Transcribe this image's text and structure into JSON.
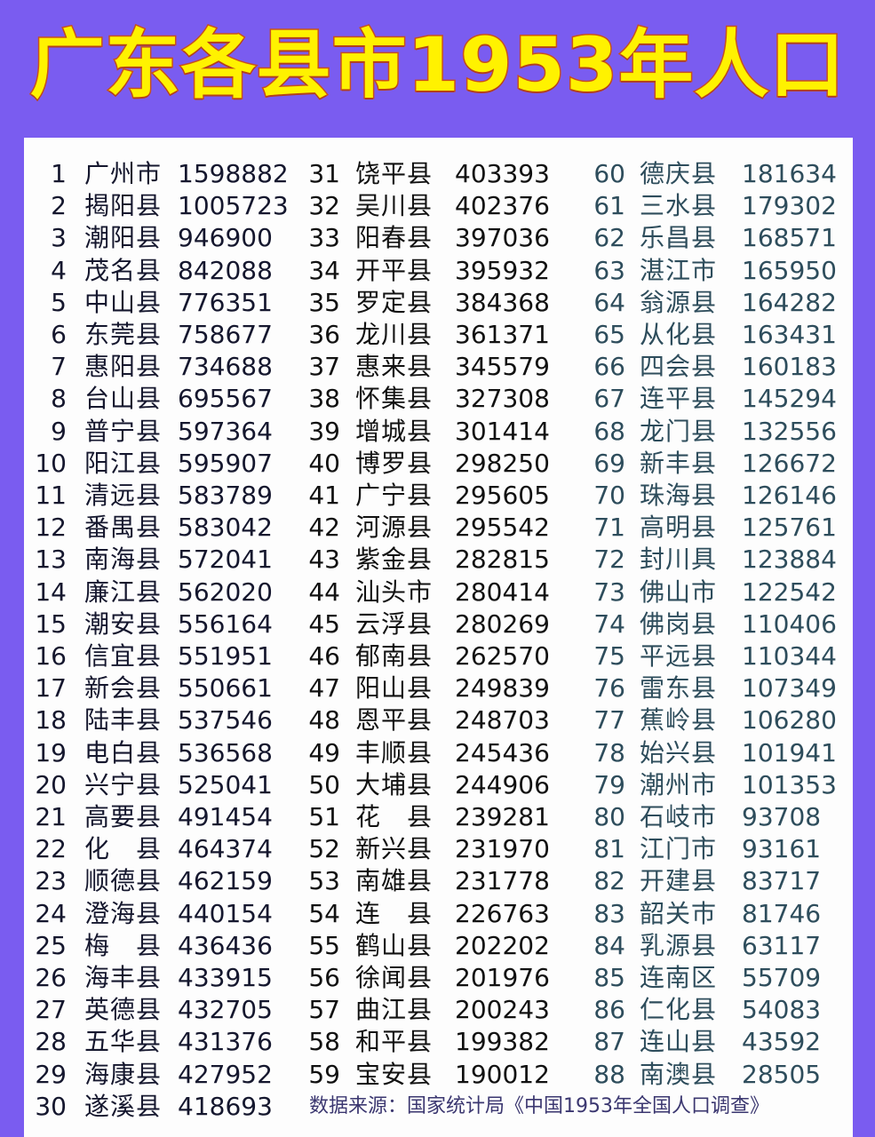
{
  "title": "广东各县市1953年人口",
  "source_note": "数据来源：国家统计局《中国1953年全国人口调查》",
  "colors": {
    "background": "#7a5cf0",
    "title_fill": "#fff200",
    "title_stroke": "#c8501e"
  },
  "columns": [
    {
      "rows": [
        {
          "rank": "1",
          "name": "广州市",
          "population": "1598882"
        },
        {
          "rank": "2",
          "name": "揭阳县",
          "population": "1005723"
        },
        {
          "rank": "3",
          "name": "潮阳县",
          "population": "946900"
        },
        {
          "rank": "4",
          "name": "茂名县",
          "population": "842088"
        },
        {
          "rank": "5",
          "name": "中山县",
          "population": "776351"
        },
        {
          "rank": "6",
          "name": "东莞县",
          "population": "758677"
        },
        {
          "rank": "7",
          "name": "惠阳县",
          "population": "734688"
        },
        {
          "rank": "8",
          "name": "台山县",
          "population": "695567"
        },
        {
          "rank": "9",
          "name": "普宁县",
          "population": "597364"
        },
        {
          "rank": "10",
          "name": "阳江县",
          "population": "595907"
        },
        {
          "rank": "11",
          "name": "清远县",
          "population": "583789"
        },
        {
          "rank": "12",
          "name": "番禺县",
          "population": "583042"
        },
        {
          "rank": "13",
          "name": "南海县",
          "population": "572041"
        },
        {
          "rank": "14",
          "name": "廉江县",
          "population": "562020"
        },
        {
          "rank": "15",
          "name": "潮安县",
          "population": "556164"
        },
        {
          "rank": "16",
          "name": "信宜县",
          "population": "551951"
        },
        {
          "rank": "17",
          "name": "新会县",
          "population": "550661"
        },
        {
          "rank": "18",
          "name": "陆丰县",
          "population": "537546"
        },
        {
          "rank": "19",
          "name": "电白县",
          "population": "536568"
        },
        {
          "rank": "20",
          "name": "兴宁县",
          "population": "525041"
        },
        {
          "rank": "21",
          "name": "高要县",
          "population": "491454"
        },
        {
          "rank": "22",
          "name": "化　县",
          "population": "464374"
        },
        {
          "rank": "23",
          "name": "顺德县",
          "population": "462159"
        },
        {
          "rank": "24",
          "name": "澄海县",
          "population": "440154"
        },
        {
          "rank": "25",
          "name": "梅　县",
          "population": "436436"
        },
        {
          "rank": "26",
          "name": "海丰县",
          "population": "433915"
        },
        {
          "rank": "27",
          "name": "英德县",
          "population": "432705"
        },
        {
          "rank": "28",
          "name": "五华县",
          "population": "431376"
        },
        {
          "rank": "29",
          "name": "海康县",
          "population": "427952"
        },
        {
          "rank": "30",
          "name": "遂溪县",
          "population": "418693"
        }
      ]
    },
    {
      "rows": [
        {
          "rank": "31",
          "name": "饶平县",
          "population": "403393"
        },
        {
          "rank": "32",
          "name": "吴川县",
          "population": "402376"
        },
        {
          "rank": "33",
          "name": "阳春县",
          "population": "397036"
        },
        {
          "rank": "34",
          "name": "开平县",
          "population": "395932"
        },
        {
          "rank": "35",
          "name": "罗定县",
          "population": "384368"
        },
        {
          "rank": "36",
          "name": "龙川县",
          "population": "361371"
        },
        {
          "rank": "37",
          "name": "惠来县",
          "population": "345579"
        },
        {
          "rank": "38",
          "name": "怀集县",
          "population": "327308"
        },
        {
          "rank": "39",
          "name": "增城县",
          "population": "301414"
        },
        {
          "rank": "40",
          "name": "博罗县",
          "population": "298250"
        },
        {
          "rank": "41",
          "name": "广宁县",
          "population": "295605"
        },
        {
          "rank": "42",
          "name": "河源县",
          "population": "295542"
        },
        {
          "rank": "43",
          "name": "紫金县",
          "population": "282815"
        },
        {
          "rank": "44",
          "name": "汕头市",
          "population": "280414"
        },
        {
          "rank": "45",
          "name": "云浮县",
          "population": "280269"
        },
        {
          "rank": "46",
          "name": "郁南县",
          "population": "262570"
        },
        {
          "rank": "47",
          "name": "阳山县",
          "population": "249839"
        },
        {
          "rank": "48",
          "name": "恩平县",
          "population": "248703"
        },
        {
          "rank": "49",
          "name": "丰顺县",
          "population": "245436"
        },
        {
          "rank": "50",
          "name": "大埔县",
          "population": "244906"
        },
        {
          "rank": "51",
          "name": "花　县",
          "population": "239281"
        },
        {
          "rank": "52",
          "name": "新兴县",
          "population": "231970"
        },
        {
          "rank": "53",
          "name": "南雄县",
          "population": "231778"
        },
        {
          "rank": "54",
          "name": "连　县",
          "population": "226763"
        },
        {
          "rank": "55",
          "name": "鹤山县",
          "population": "202202"
        },
        {
          "rank": "56",
          "name": "徐闻县",
          "population": "201976"
        },
        {
          "rank": "57",
          "name": "曲江县",
          "population": "200243"
        },
        {
          "rank": "58",
          "name": "和平县",
          "population": "199382"
        },
        {
          "rank": "59",
          "name": "宝安县",
          "population": "190012"
        }
      ]
    },
    {
      "rows": [
        {
          "rank": "60",
          "name": "德庆县",
          "population": "181634"
        },
        {
          "rank": "61",
          "name": "三水县",
          "population": "179302"
        },
        {
          "rank": "62",
          "name": "乐昌县",
          "population": "168571"
        },
        {
          "rank": "63",
          "name": "湛江市",
          "population": "165950"
        },
        {
          "rank": "64",
          "name": "翁源县",
          "population": "164282"
        },
        {
          "rank": "65",
          "name": "从化县",
          "population": "163431"
        },
        {
          "rank": "66",
          "name": "四会县",
          "population": "160183"
        },
        {
          "rank": "67",
          "name": "连平县",
          "population": "145294"
        },
        {
          "rank": "68",
          "name": "龙门县",
          "population": "132556"
        },
        {
          "rank": "69",
          "name": "新丰县",
          "population": "126672"
        },
        {
          "rank": "70",
          "name": "珠海县",
          "population": "126146"
        },
        {
          "rank": "71",
          "name": "高明县",
          "population": "125761"
        },
        {
          "rank": "72",
          "name": "封川具",
          "population": "123884"
        },
        {
          "rank": "73",
          "name": "佛山市",
          "population": "122542"
        },
        {
          "rank": "74",
          "name": "佛岗县",
          "population": "110406"
        },
        {
          "rank": "75",
          "name": "平远县",
          "population": "110344"
        },
        {
          "rank": "76",
          "name": "雷东县",
          "population": "107349"
        },
        {
          "rank": "77",
          "name": "蕉岭县",
          "population": "106280"
        },
        {
          "rank": "78",
          "name": "始兴县",
          "population": "101941"
        },
        {
          "rank": "79",
          "name": "潮州市",
          "population": "101353"
        },
        {
          "rank": "80",
          "name": "石岐市",
          "population": "93708"
        },
        {
          "rank": "81",
          "name": "江门市",
          "population": "93161"
        },
        {
          "rank": "82",
          "name": "开建县",
          "population": "83717"
        },
        {
          "rank": "83",
          "name": "韶关巿",
          "population": "81746"
        },
        {
          "rank": "84",
          "name": "乳源县",
          "population": "63117"
        },
        {
          "rank": "85",
          "name": "连南区",
          "population": "55709"
        },
        {
          "rank": "86",
          "name": "仁化县",
          "population": "54083"
        },
        {
          "rank": "87",
          "name": "连山县",
          "population": "43592"
        },
        {
          "rank": "88",
          "name": "南澳县",
          "population": "28505"
        }
      ]
    }
  ]
}
